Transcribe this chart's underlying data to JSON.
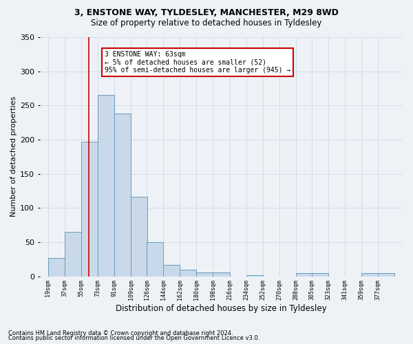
{
  "title1": "3, ENSTONE WAY, TYLDESLEY, MANCHESTER, M29 8WD",
  "title2": "Size of property relative to detached houses in Tyldesley",
  "xlabel": "Distribution of detached houses by size in Tyldesley",
  "ylabel": "Number of detached properties",
  "bin_left_edges": [
    19,
    37,
    55,
    73,
    91,
    109,
    126,
    144,
    162,
    180,
    198,
    216,
    234,
    252,
    270,
    288,
    305,
    323,
    341,
    359,
    377
  ],
  "bar_heights": [
    27,
    65,
    197,
    265,
    238,
    116,
    50,
    17,
    10,
    6,
    6,
    0,
    2,
    0,
    0,
    5,
    5,
    0,
    0,
    5,
    5
  ],
  "bar_color": "#c9d9ea",
  "bar_edge_color": "#6699bb",
  "grid_color": "#d0dde8",
  "vline_x": 63,
  "vline_color": "#cc0000",
  "annotation_text": "3 ENSTONE WAY: 63sqm\n← 5% of detached houses are smaller (52)\n95% of semi-detached houses are larger (945) →",
  "annotation_box_facecolor": "#ffffff",
  "annotation_box_edgecolor": "#cc0000",
  "ylim": [
    0,
    350
  ],
  "yticks": [
    0,
    50,
    100,
    150,
    200,
    250,
    300,
    350
  ],
  "tick_labels": [
    "19sqm",
    "37sqm",
    "55sqm",
    "73sqm",
    "91sqm",
    "109sqm",
    "126sqm",
    "144sqm",
    "162sqm",
    "180sqm",
    "198sqm",
    "216sqm",
    "234sqm",
    "252sqm",
    "270sqm",
    "288sqm",
    "305sqm",
    "323sqm",
    "341sqm",
    "359sqm",
    "377sqm"
  ],
  "footnote1": "Contains HM Land Registry data © Crown copyright and database right 2024.",
  "footnote2": "Contains public sector information licensed under the Open Government Licence v3.0.",
  "background_color": "#eef2f7",
  "plot_bg_color": "#eef2f7",
  "title1_fontsize": 9,
  "title2_fontsize": 8.5,
  "ylabel_fontsize": 8,
  "xlabel_fontsize": 8.5,
  "footnote_fontsize": 6
}
